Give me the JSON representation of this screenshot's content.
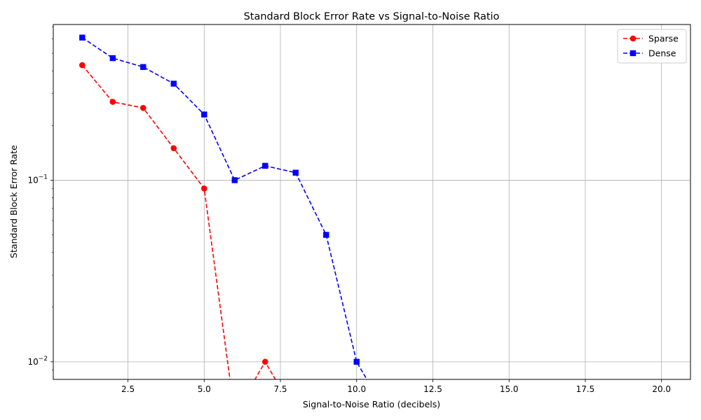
{
  "chart_data": {
    "type": "line",
    "title": "Standard Block Error Rate vs Signal-to-Noise Ratio",
    "xlabel": "Signal-to-Noise Ratio (decibels)",
    "ylabel": "Standard Block Error Rate",
    "xlim": [
      0.05,
      20.95
    ],
    "ylim": [
      0.008,
      0.72
    ],
    "yscale": "log",
    "grid": true,
    "legend_position": "top-right",
    "x_ticks": [
      2.5,
      5.0,
      7.5,
      10.0,
      12.5,
      15.0,
      17.5,
      20.0
    ],
    "x_tick_labels": [
      "2.5",
      "5.0",
      "7.5",
      "10.0",
      "12.5",
      "15.0",
      "17.5",
      "20.0"
    ],
    "y_ticks": [
      0.01,
      0.1
    ],
    "y_tick_labels": [
      {
        "base": "10",
        "exp": "−2"
      },
      {
        "base": "10",
        "exp": "−1"
      }
    ],
    "series": [
      {
        "name": "Sparse",
        "color": "#ff0000",
        "marker": "circle",
        "linestyle": "dashed",
        "x": [
          1,
          2,
          3,
          4,
          5,
          6,
          7,
          8,
          9,
          10,
          11,
          12,
          13,
          14,
          15,
          16,
          17,
          18,
          19,
          20
        ],
        "y": [
          0.43,
          0.27,
          0.25,
          0.15,
          0.09,
          0,
          0.01,
          0,
          0,
          0,
          0,
          0,
          0,
          0,
          0,
          0,
          0,
          0,
          0,
          0
        ]
      },
      {
        "name": "Dense",
        "color": "#0000ff",
        "marker": "square",
        "linestyle": "dashed",
        "x": [
          1,
          2,
          3,
          4,
          5,
          6,
          7,
          8,
          9,
          10,
          11,
          12,
          13,
          14,
          15,
          16,
          17,
          18,
          19,
          20
        ],
        "y": [
          0.61,
          0.47,
          0.42,
          0.34,
          0.23,
          0.1,
          0.12,
          0.11,
          0.05,
          0.01,
          0,
          0,
          0,
          0,
          0,
          0,
          0,
          0,
          0,
          0
        ]
      }
    ]
  }
}
